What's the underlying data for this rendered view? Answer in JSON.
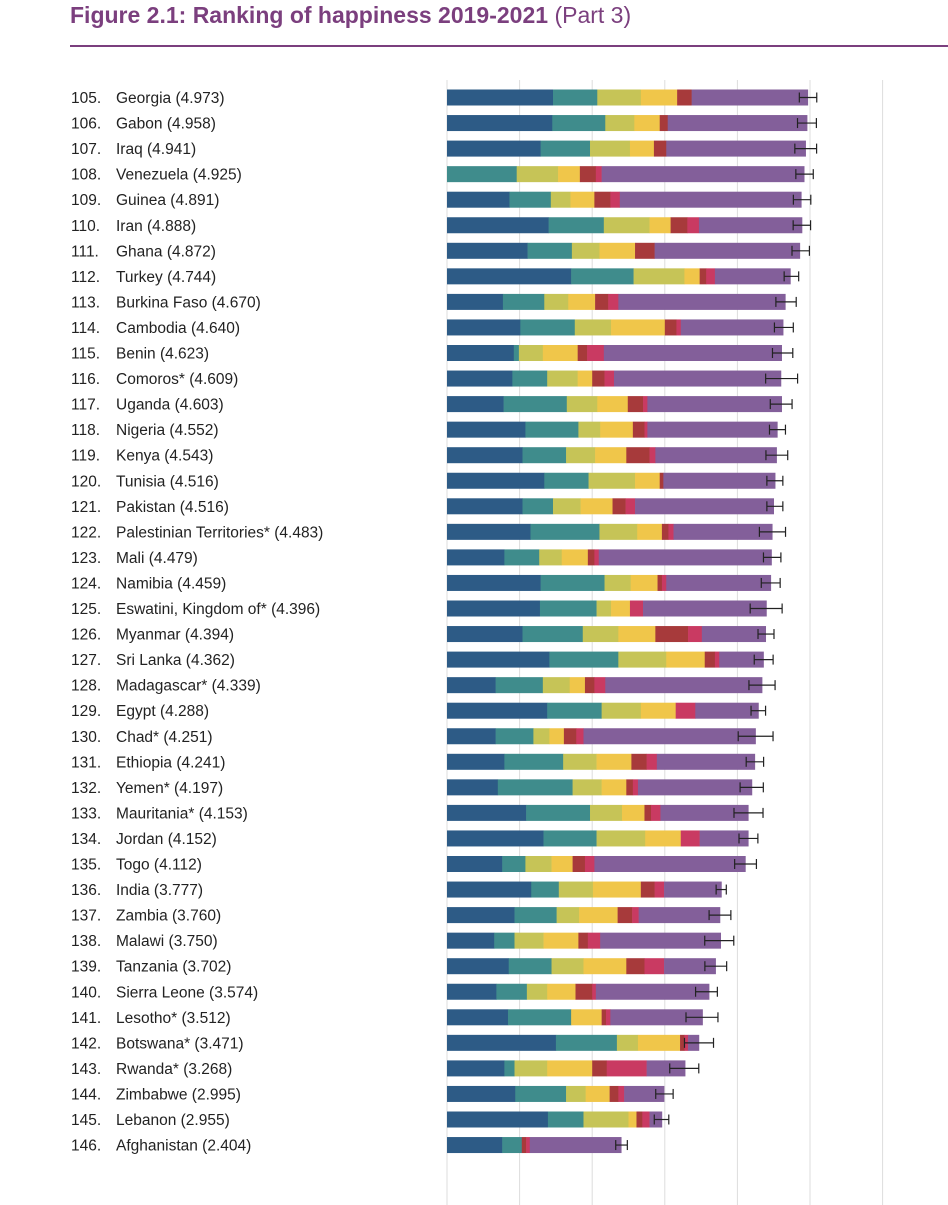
{
  "title_bold": "Figure 2.1: Ranking of happiness 2019-2021",
  "title_part": "(Part 3)",
  "colors": {
    "title": "#7b3f7e",
    "segments": [
      "#2d5b86",
      "#3f8c8c",
      "#c6c457",
      "#f0c64a",
      "#a73a3b",
      "#c93a62",
      "#835f9a"
    ],
    "error_bar": "#222222",
    "grid": "#dddddd"
  },
  "chart_data": {
    "type": "bar",
    "orientation": "horizontal",
    "stacked": true,
    "grid": true,
    "segment_order": [
      "segment_1",
      "segment_2",
      "segment_3",
      "segment_4",
      "segment_5",
      "segment_6",
      "segment_7"
    ],
    "rows": [
      {
        "rank": "105.",
        "label": "Georgia (4.973)",
        "score": 4.973,
        "segments": [
          1.46,
          0.61,
          0.6,
          0.5,
          0.2,
          0.0,
          1.6
        ],
        "err": 0.12
      },
      {
        "rank": "106.",
        "label": "Gabon (4.958)",
        "score": 4.958,
        "segments": [
          1.45,
          0.73,
          0.4,
          0.35,
          0.11,
          0.0,
          1.92
        ],
        "err": 0.13
      },
      {
        "rank": "107.",
        "label": "Iraq (4.941)",
        "score": 4.941,
        "segments": [
          1.29,
          0.68,
          0.55,
          0.33,
          0.17,
          0.0,
          1.92
        ],
        "err": 0.15
      },
      {
        "rank": "108.",
        "label": "Venezuela (4.925)",
        "score": 4.925,
        "segments": [
          0.0,
          0.96,
          0.57,
          0.3,
          0.22,
          0.08,
          2.79
        ],
        "err": 0.12
      },
      {
        "rank": "109.",
        "label": "Guinea (4.891)",
        "score": 4.891,
        "segments": [
          0.86,
          0.57,
          0.27,
          0.33,
          0.22,
          0.13,
          2.5
        ],
        "err": 0.12
      },
      {
        "rank": "110.",
        "label": "Iran (4.888)",
        "score": 4.888,
        "segments": [
          1.4,
          0.76,
          0.63,
          0.29,
          0.23,
          0.16,
          1.42
        ],
        "err": 0.12
      },
      {
        "rank": "111.",
        "label": "Ghana (4.872)",
        "score": 4.872,
        "segments": [
          1.11,
          0.61,
          0.38,
          0.49,
          0.27,
          0.0,
          2.0
        ],
        "err": 0.12
      },
      {
        "rank": "112.",
        "label": "Turkey (4.744)",
        "score": 4.744,
        "segments": [
          1.71,
          0.86,
          0.7,
          0.21,
          0.09,
          0.12,
          1.04
        ],
        "err": 0.1
      },
      {
        "rank": "113.",
        "label": "Burkina Faso (4.670)",
        "score": 4.67,
        "segments": [
          0.77,
          0.57,
          0.33,
          0.37,
          0.18,
          0.14,
          2.3
        ],
        "err": 0.14
      },
      {
        "rank": "114.",
        "label": "Cambodia (4.640)",
        "score": 4.64,
        "segments": [
          1.01,
          0.75,
          0.5,
          0.74,
          0.16,
          0.06,
          1.41
        ],
        "err": 0.13
      },
      {
        "rank": "115.",
        "label": "Benin (4.623)",
        "score": 4.623,
        "segments": [
          0.92,
          0.07,
          0.33,
          0.48,
          0.13,
          0.23,
          2.45
        ],
        "err": 0.14
      },
      {
        "rank": "116.",
        "label": "Comoros* (4.609)",
        "score": 4.609,
        "segments": [
          0.9,
          0.48,
          0.42,
          0.2,
          0.17,
          0.13,
          2.3
        ],
        "err": 0.22
      },
      {
        "rank": "117.",
        "label": "Uganda (4.603)",
        "score": 4.603,
        "segments": [
          0.78,
          0.87,
          0.42,
          0.42,
          0.21,
          0.06,
          1.85
        ],
        "err": 0.15
      },
      {
        "rank": "118.",
        "label": "Nigeria (4.552)",
        "score": 4.552,
        "segments": [
          1.08,
          0.73,
          0.3,
          0.45,
          0.16,
          0.04,
          1.79
        ],
        "err": 0.11
      },
      {
        "rank": "119.",
        "label": "Kenya (4.543)",
        "score": 4.543,
        "segments": [
          1.04,
          0.6,
          0.4,
          0.43,
          0.32,
          0.08,
          1.67
        ],
        "err": 0.15
      },
      {
        "rank": "120.",
        "label": "Tunisia (4.516)",
        "score": 4.516,
        "segments": [
          1.34,
          0.61,
          0.64,
          0.34,
          0.05,
          0.0,
          1.54
        ],
        "err": 0.11
      },
      {
        "rank": "121.",
        "label": "Pakistan (4.516)",
        "score": 4.516,
        "segments": [
          1.04,
          0.42,
          0.38,
          0.44,
          0.18,
          0.13,
          1.91
        ],
        "err": 0.11
      },
      {
        "rank": "122.",
        "label": "Palestinian Territories* (4.483)",
        "score": 4.483,
        "segments": [
          1.15,
          0.95,
          0.52,
          0.34,
          0.09,
          0.07,
          1.36
        ],
        "err": 0.18
      },
      {
        "rank": "123.",
        "label": "Mali (4.479)",
        "score": 4.479,
        "segments": [
          0.79,
          0.48,
          0.31,
          0.36,
          0.09,
          0.06,
          2.38
        ],
        "err": 0.12
      },
      {
        "rank": "124.",
        "label": "Namibia (4.459)",
        "score": 4.459,
        "segments": [
          1.29,
          0.88,
          0.36,
          0.37,
          0.06,
          0.06,
          1.44
        ],
        "err": 0.13
      },
      {
        "rank": "125.",
        "label": "Eswatini, Kingdom of* (4.396)",
        "score": 4.396,
        "segments": [
          1.28,
          0.78,
          0.2,
          0.26,
          0.0,
          0.18,
          1.7
        ],
        "err": 0.22
      },
      {
        "rank": "126.",
        "label": "Myanmar (4.394)",
        "score": 4.394,
        "segments": [
          1.04,
          0.83,
          0.49,
          0.51,
          0.45,
          0.19,
          0.88
        ],
        "err": 0.11
      },
      {
        "rank": "127.",
        "label": "Sri Lanka (4.362)",
        "score": 4.362,
        "segments": [
          1.41,
          0.95,
          0.66,
          0.53,
          0.14,
          0.06,
          0.61
        ],
        "err": 0.13
      },
      {
        "rank": "128.",
        "label": "Madagascar* (4.339)",
        "score": 4.339,
        "segments": [
          0.67,
          0.65,
          0.37,
          0.21,
          0.13,
          0.15,
          2.16
        ],
        "err": 0.18
      },
      {
        "rank": "129.",
        "label": "Egypt (4.288)",
        "score": 4.288,
        "segments": [
          1.38,
          0.75,
          0.54,
          0.48,
          0.0,
          0.27,
          0.87
        ],
        "err": 0.1
      },
      {
        "rank": "130.",
        "label": "Chad* (4.251)",
        "score": 4.251,
        "segments": [
          0.67,
          0.52,
          0.22,
          0.2,
          0.17,
          0.1,
          2.37
        ],
        "err": 0.24
      },
      {
        "rank": "131.",
        "label": "Ethiopia (4.241)",
        "score": 4.241,
        "segments": [
          0.79,
          0.81,
          0.46,
          0.48,
          0.21,
          0.14,
          1.35
        ],
        "err": 0.12
      },
      {
        "rank": "132.",
        "label": "Yemen* (4.197)",
        "score": 4.197,
        "segments": [
          0.7,
          1.03,
          0.4,
          0.34,
          0.09,
          0.07,
          1.57
        ],
        "err": 0.16
      },
      {
        "rank": "133.",
        "label": "Mauritania* (4.153)",
        "score": 4.153,
        "segments": [
          1.09,
          0.88,
          0.44,
          0.31,
          0.09,
          0.13,
          1.21
        ],
        "err": 0.2
      },
      {
        "rank": "134.",
        "label": "Jordan (4.152)",
        "score": 4.152,
        "segments": [
          1.33,
          0.73,
          0.67,
          0.49,
          0.0,
          0.26,
          0.67
        ],
        "err": 0.13
      },
      {
        "rank": "135.",
        "label": "Togo (4.112)",
        "score": 4.112,
        "segments": [
          0.76,
          0.32,
          0.36,
          0.29,
          0.17,
          0.13,
          2.08
        ],
        "err": 0.15
      },
      {
        "rank": "136.",
        "label": "India (3.777)",
        "score": 3.777,
        "segments": [
          1.16,
          0.38,
          0.47,
          0.66,
          0.19,
          0.13,
          0.79
        ],
        "err": 0.07
      },
      {
        "rank": "137.",
        "label": "Zambia (3.760)",
        "score": 3.76,
        "segments": [
          0.93,
          0.58,
          0.31,
          0.53,
          0.2,
          0.09,
          1.12
        ],
        "err": 0.15
      },
      {
        "rank": "138.",
        "label": "Malawi (3.750)",
        "score": 3.75,
        "segments": [
          0.65,
          0.28,
          0.4,
          0.48,
          0.13,
          0.17,
          1.66
        ],
        "err": 0.2
      },
      {
        "rank": "139.",
        "label": "Tanzania (3.702)",
        "score": 3.702,
        "segments": [
          0.85,
          0.59,
          0.44,
          0.59,
          0.25,
          0.27,
          0.71
        ],
        "err": 0.15
      },
      {
        "rank": "140.",
        "label": "Sierra Leone (3.574)",
        "score": 3.574,
        "segments": [
          0.68,
          0.42,
          0.28,
          0.39,
          0.23,
          0.05,
          1.56
        ],
        "err": 0.15
      },
      {
        "rank": "141.",
        "label": "Lesotho* (3.512)",
        "score": 3.512,
        "segments": [
          0.84,
          0.87,
          0.0,
          0.42,
          0.06,
          0.06,
          1.27
        ],
        "err": 0.22
      },
      {
        "rank": "142.",
        "label": "Botswana* (3.471)",
        "score": 3.471,
        "segments": [
          1.5,
          0.84,
          0.29,
          0.58,
          0.06,
          0.05,
          0.15
        ],
        "err": 0.2
      },
      {
        "rank": "143.",
        "label": "Rwanda* (3.268)",
        "score": 3.268,
        "segments": [
          0.79,
          0.14,
          0.45,
          0.62,
          0.2,
          0.55,
          0.53
        ],
        "err": 0.2
      },
      {
        "rank": "144.",
        "label": "Zimbabwe (2.995)",
        "score": 2.995,
        "segments": [
          0.94,
          0.7,
          0.27,
          0.33,
          0.12,
          0.08,
          0.55
        ],
        "err": 0.12
      },
      {
        "rank": "145.",
        "label": "Lebanon (2.955)",
        "score": 2.955,
        "segments": [
          1.39,
          0.49,
          0.62,
          0.11,
          0.08,
          0.1,
          0.17
        ],
        "err": 0.1
      },
      {
        "rank": "146.",
        "label": "Afghanistan (2.404)",
        "score": 2.404,
        "segments": [
          0.76,
          0.27,
          0.0,
          0.0,
          0.06,
          0.05,
          1.26
        ],
        "err": 0.08
      }
    ]
  }
}
